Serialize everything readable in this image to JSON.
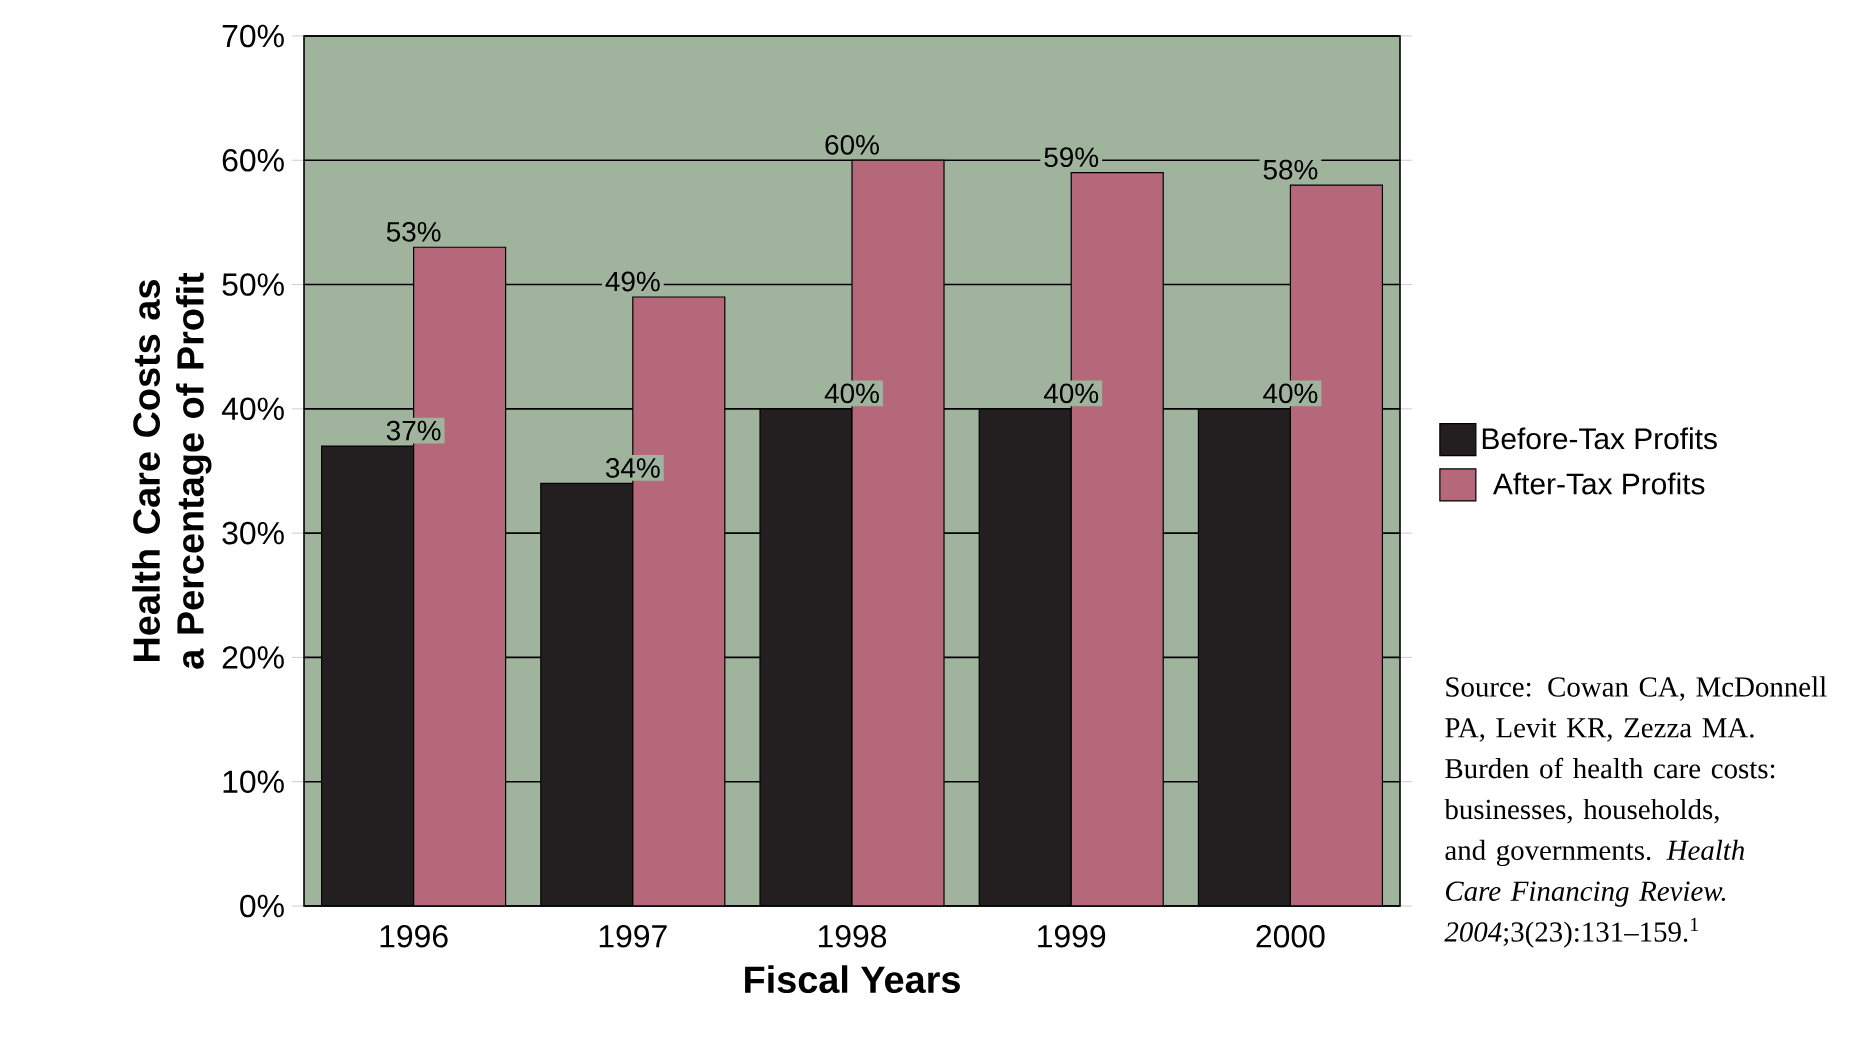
{
  "chart_data": {
    "type": "bar",
    "xlabel": "Fiscal Years",
    "ylabel": "Health Care Costs as a Percentage of Profit",
    "categories": [
      "1996",
      "1997",
      "1998",
      "1999",
      "2000"
    ],
    "series": [
      {
        "name": "Before-Tax Profits",
        "color": "#231f20",
        "values": [
          37,
          34,
          40,
          40,
          40
        ],
        "value_labels": [
          "37%",
          "34%",
          "40%",
          "40%",
          "40%"
        ]
      },
      {
        "name": "After-Tax Profits",
        "color": "#b5687a",
        "values": [
          53,
          49,
          60,
          59,
          58
        ],
        "value_labels": [
          "53%",
          "49%",
          "60%",
          "59%",
          "58%"
        ]
      }
    ],
    "ylim": [
      0,
      70
    ],
    "yticks": [
      {
        "value": 0,
        "label": "0%"
      },
      {
        "value": 10,
        "label": "10%"
      },
      {
        "value": 20,
        "label": "20%"
      },
      {
        "value": 30,
        "label": "30%"
      },
      {
        "value": 40,
        "label": "40%"
      },
      {
        "value": 50,
        "label": "50%"
      },
      {
        "value": 60,
        "label": "60%"
      },
      {
        "value": 70,
        "label": "70%"
      }
    ],
    "grid": "y",
    "legend": "right",
    "annotations": [
      "Source: Cowan CA, McDonnell PA, Levit KR, Zezza MA. Burden of health care costs: businesses, households, and governments. *Health Care Financing Review. 2004*;3(23):131–159.$^{1}$"
    ]
  }
}
